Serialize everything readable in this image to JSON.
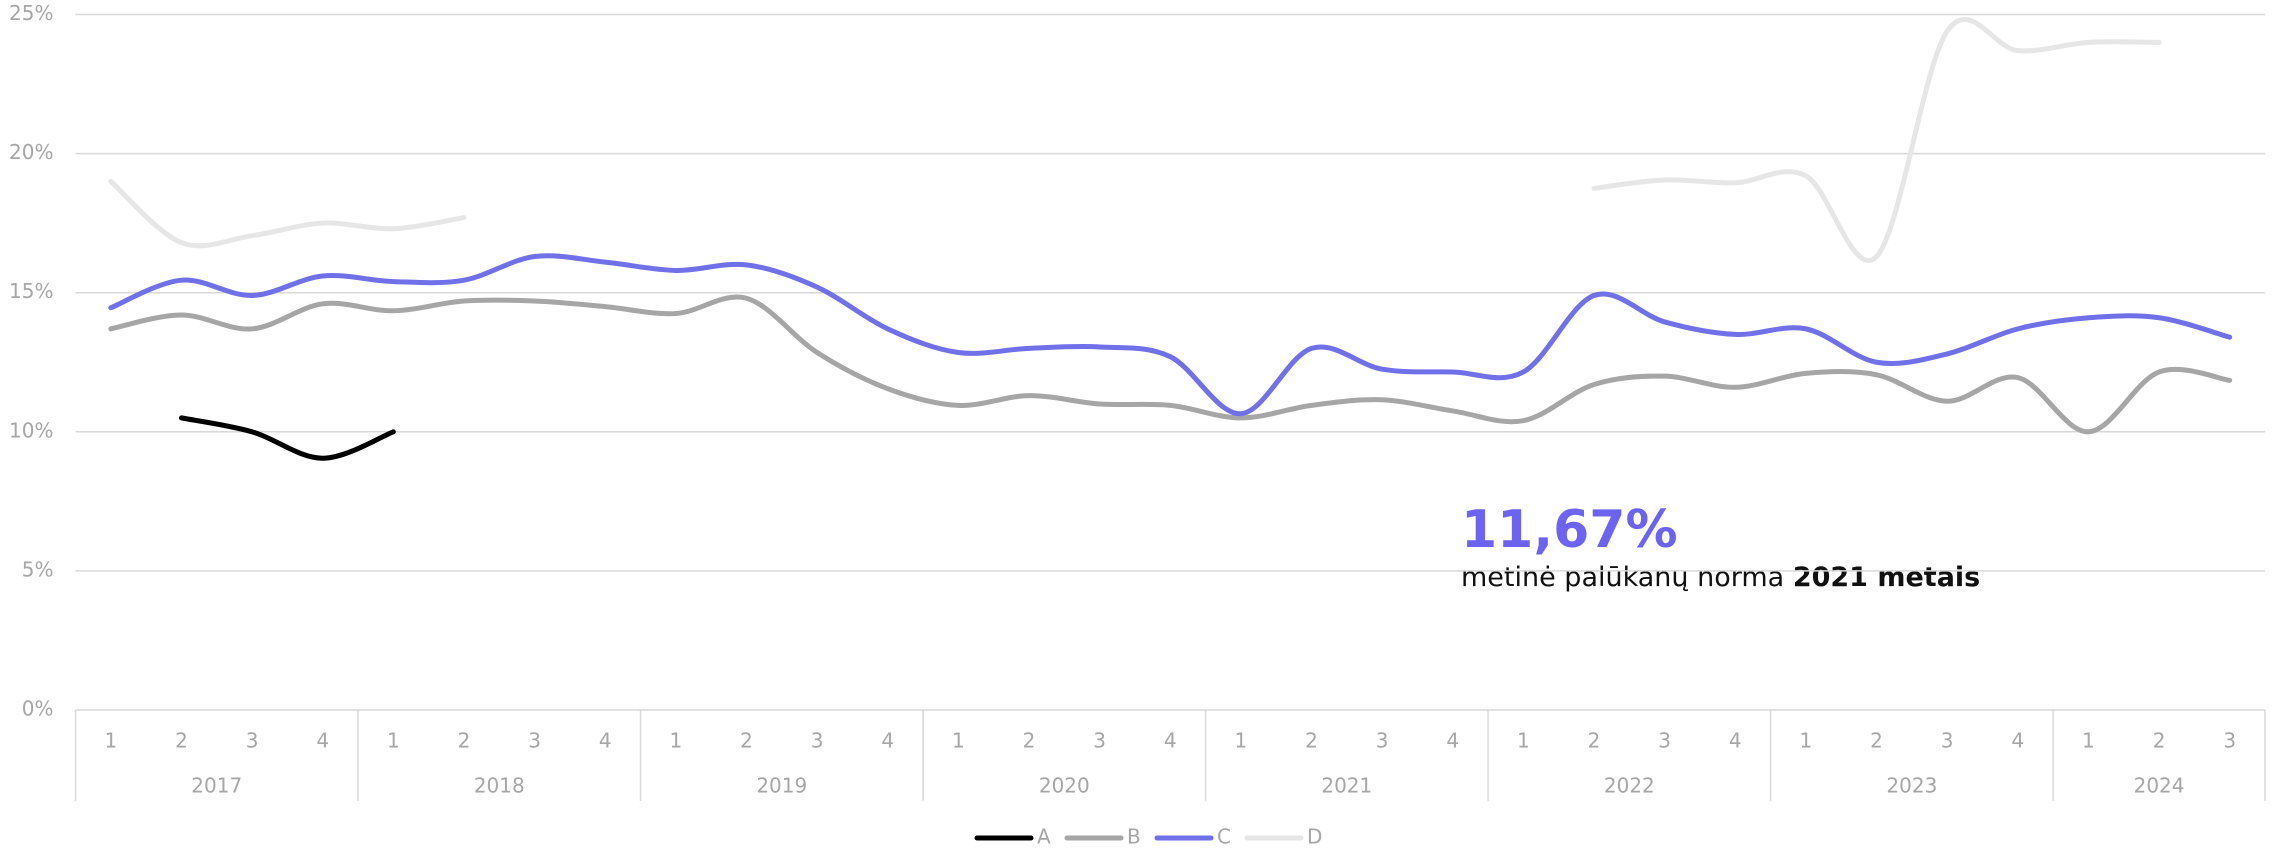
{
  "chart_data": {
    "type": "line",
    "groups": [
      {
        "label": "2017",
        "categories": [
          "1",
          "2",
          "3",
          "4"
        ]
      },
      {
        "label": "2018",
        "categories": [
          "1",
          "2",
          "3",
          "4"
        ]
      },
      {
        "label": "2019",
        "categories": [
          "1",
          "2",
          "3",
          "4"
        ]
      },
      {
        "label": "2020",
        "categories": [
          "1",
          "2",
          "3",
          "4"
        ]
      },
      {
        "label": "2021",
        "categories": [
          "1",
          "2",
          "3",
          "4"
        ]
      },
      {
        "label": "2022",
        "categories": [
          "1",
          "2",
          "3",
          "4"
        ]
      },
      {
        "label": "2023",
        "categories": [
          "1",
          "2",
          "3",
          "4"
        ]
      },
      {
        "label": "2024",
        "categories": [
          "1",
          "2",
          "3"
        ]
      }
    ],
    "series": [
      {
        "name": "A",
        "color": "#000000",
        "values": [
          null,
          10.5,
          10.0,
          9.05,
          10.0,
          null,
          null,
          null,
          null,
          null,
          null,
          null,
          null,
          null,
          null,
          null,
          null,
          null,
          null,
          null,
          null,
          null,
          null,
          null,
          null,
          null,
          null,
          null,
          null,
          null,
          null
        ]
      },
      {
        "name": "B",
        "color": "#a6a6a6",
        "values": [
          13.7,
          14.2,
          13.7,
          14.6,
          14.35,
          14.7,
          14.7,
          14.5,
          14.25,
          14.8,
          12.85,
          11.55,
          10.95,
          11.3,
          11.0,
          10.95,
          10.5,
          10.95,
          11.15,
          10.75,
          10.4,
          11.7,
          12.0,
          11.6,
          12.1,
          12.05,
          11.1,
          11.95,
          10.0,
          12.15,
          11.85
        ]
      },
      {
        "name": "C",
        "color": "#7070e8",
        "values": [
          14.46,
          15.45,
          14.9,
          15.6,
          15.4,
          15.45,
          16.3,
          16.1,
          15.8,
          16.0,
          15.2,
          13.7,
          12.85,
          13.0,
          13.05,
          12.7,
          10.65,
          13.0,
          12.25,
          12.15,
          12.15,
          14.9,
          13.95,
          13.5,
          13.7,
          12.5,
          12.8,
          13.7,
          14.1,
          14.1,
          13.4
        ]
      },
      {
        "name": "D",
        "color": "#e6e6e6",
        "values": [
          19.0,
          16.8,
          17.05,
          17.5,
          17.3,
          17.7,
          null,
          null,
          null,
          null,
          null,
          null,
          null,
          null,
          null,
          null,
          null,
          null,
          null,
          null,
          null,
          18.75,
          19.05,
          18.95,
          19.2,
          16.3,
          24.4,
          23.7,
          24.0,
          24.0,
          null
        ]
      }
    ],
    "ylim": [
      0,
      25
    ],
    "yticks": [
      {
        "value": 0,
        "label": "0%"
      },
      {
        "value": 5,
        "label": "5%"
      },
      {
        "value": 10,
        "label": "10%"
      },
      {
        "value": 15,
        "label": "15%"
      },
      {
        "value": 20,
        "label": "20%"
      },
      {
        "value": 25,
        "label": "25%"
      }
    ],
    "grid": true,
    "legend": "bottom",
    "annotation": {
      "value": "11,67%",
      "text": "metinė palūkanų norma ",
      "text_bold": "2021 metais"
    }
  }
}
